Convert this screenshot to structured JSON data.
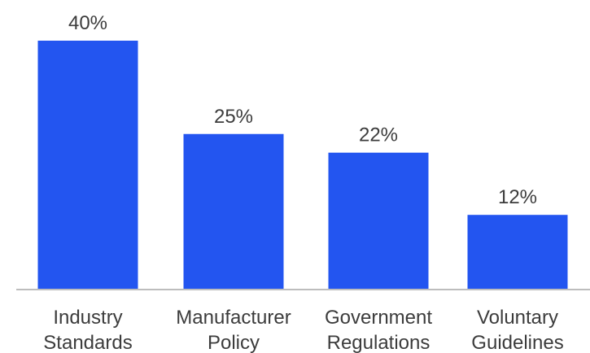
{
  "chart_data": {
    "type": "bar",
    "categories": [
      [
        "Industry",
        "Standards"
      ],
      [
        "Manufacturer",
        "Policy"
      ],
      [
        "Government",
        "Regulations"
      ],
      [
        "Voluntary",
        "Guidelines"
      ]
    ],
    "values": [
      40,
      25,
      22,
      12
    ],
    "data_labels": [
      "40%",
      "25%",
      "22%",
      "12%"
    ],
    "value_unit": "%",
    "title": "",
    "xlabel": "",
    "ylabel": "",
    "ylim": [
      0,
      40
    ],
    "grid": false,
    "legend": "none",
    "colors": {
      "bar": "#2355f0",
      "axis": "#bdbdbd",
      "text": "#3c3c3c"
    }
  }
}
